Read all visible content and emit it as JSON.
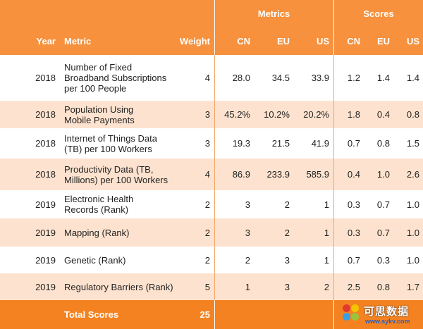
{
  "header": {
    "group_metrics": "Metrics",
    "group_scores": "Scores",
    "col_year": "Year",
    "col_metric": "Metric",
    "col_weight": "Weight",
    "metrics_cn": "CN",
    "metrics_eu": "EU",
    "metrics_us": "US",
    "scores_cn": "CN",
    "scores_eu": "EU",
    "scores_us": "US"
  },
  "rows": [
    {
      "year": "2018",
      "metric": [
        "Number of Fixed",
        "Broadband Subscriptions",
        "per 100 People"
      ],
      "weight": "4",
      "m_cn": "28.0",
      "m_eu": "34.5",
      "m_us": "33.9",
      "s_cn": "1.2",
      "s_eu": "1.4",
      "s_us": "1.4"
    },
    {
      "year": "2018",
      "metric": [
        "Population Using",
        "Mobile Payments"
      ],
      "weight": "3",
      "m_cn": "45.2%",
      "m_eu": "10.2%",
      "m_us": "20.2%",
      "s_cn": "1.8",
      "s_eu": "0.4",
      "s_us": "0.8"
    },
    {
      "year": "2018",
      "metric": [
        "Internet of Things Data",
        "(TB) per 100 Workers"
      ],
      "weight": "3",
      "m_cn": "19.3",
      "m_eu": "21.5",
      "m_us": "41.9",
      "s_cn": "0.7",
      "s_eu": "0.8",
      "s_us": "1.5"
    },
    {
      "year": "2018",
      "metric": [
        "Productivity Data (TB,",
        "Millions) per 100 Workers"
      ],
      "weight": "4",
      "m_cn": "86.9",
      "m_eu": "233.9",
      "m_us": "585.9",
      "s_cn": "0.4",
      "s_eu": "1.0",
      "s_us": "2.6"
    },
    {
      "year": "2019",
      "metric": [
        "Electronic Health",
        "Records (Rank)"
      ],
      "weight": "2",
      "m_cn": "3",
      "m_eu": "2",
      "m_us": "1",
      "s_cn": "0.3",
      "s_eu": "0.7",
      "s_us": "1.0"
    },
    {
      "year": "2019",
      "metric": [
        "Mapping (Rank)"
      ],
      "weight": "2",
      "m_cn": "3",
      "m_eu": "2",
      "m_us": "1",
      "s_cn": "0.3",
      "s_eu": "0.7",
      "s_us": "1.0"
    },
    {
      "year": "2019",
      "metric": [
        "Genetic (Rank)"
      ],
      "weight": "2",
      "m_cn": "2",
      "m_eu": "3",
      "m_us": "1",
      "s_cn": "0.7",
      "s_eu": "0.3",
      "s_us": "1.0"
    },
    {
      "year": "2019",
      "metric": [
        "Regulatory Barriers (Rank)"
      ],
      "weight": "5",
      "m_cn": "1",
      "m_eu": "3",
      "m_us": "2",
      "s_cn": "2.5",
      "s_eu": "0.8",
      "s_us": "1.7"
    }
  ],
  "total": {
    "label": "Total Scores",
    "weight": "25"
  },
  "watermark": {
    "text_cn": "可思数据",
    "url": "www.sykv.com"
  },
  "colors": {
    "header": "#f7913d",
    "tint": "#fde3cf",
    "total": "#f58220"
  }
}
